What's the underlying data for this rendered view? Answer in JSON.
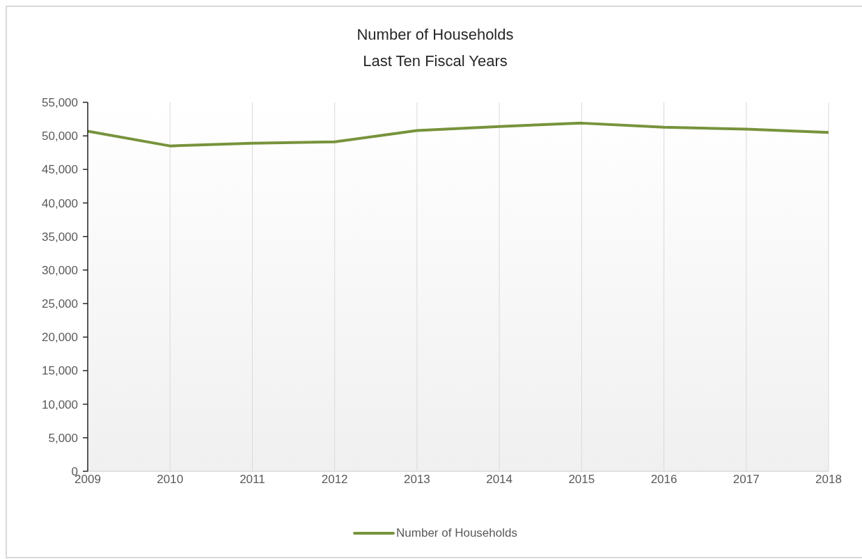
{
  "chart_data": {
    "type": "line",
    "title": "Number of Households",
    "subtitle": "Last Ten Fiscal Years",
    "categories": [
      "2009",
      "2010",
      "2011",
      "2012",
      "2013",
      "2014",
      "2015",
      "2016",
      "2017",
      "2018"
    ],
    "series": [
      {
        "name": "Number of Households",
        "color": "#77933c",
        "values": [
          50700,
          48500,
          48900,
          49100,
          50800,
          51400,
          51900,
          51300,
          51000,
          50500
        ]
      }
    ],
    "ylim": [
      0,
      55000
    ],
    "yticks": [
      0,
      {
        "value": 5000,
        "label": "5,000"
      },
      {
        "value": 10000,
        "label": "10,000"
      },
      {
        "value": 15000,
        "label": "15,000"
      },
      {
        "value": 20000,
        "label": "20,000"
      },
      {
        "value": 25000,
        "label": "25,000"
      },
      {
        "value": 30000,
        "label": "30,000"
      },
      {
        "value": 35000,
        "label": "35,000"
      },
      {
        "value": 40000,
        "label": "40,000"
      },
      {
        "value": 45000,
        "label": "45,000"
      },
      {
        "value": 50000,
        "label": "50,000"
      },
      {
        "value": 55000,
        "label": "55,000"
      }
    ],
    "grid": "x",
    "legend": "bottom"
  }
}
